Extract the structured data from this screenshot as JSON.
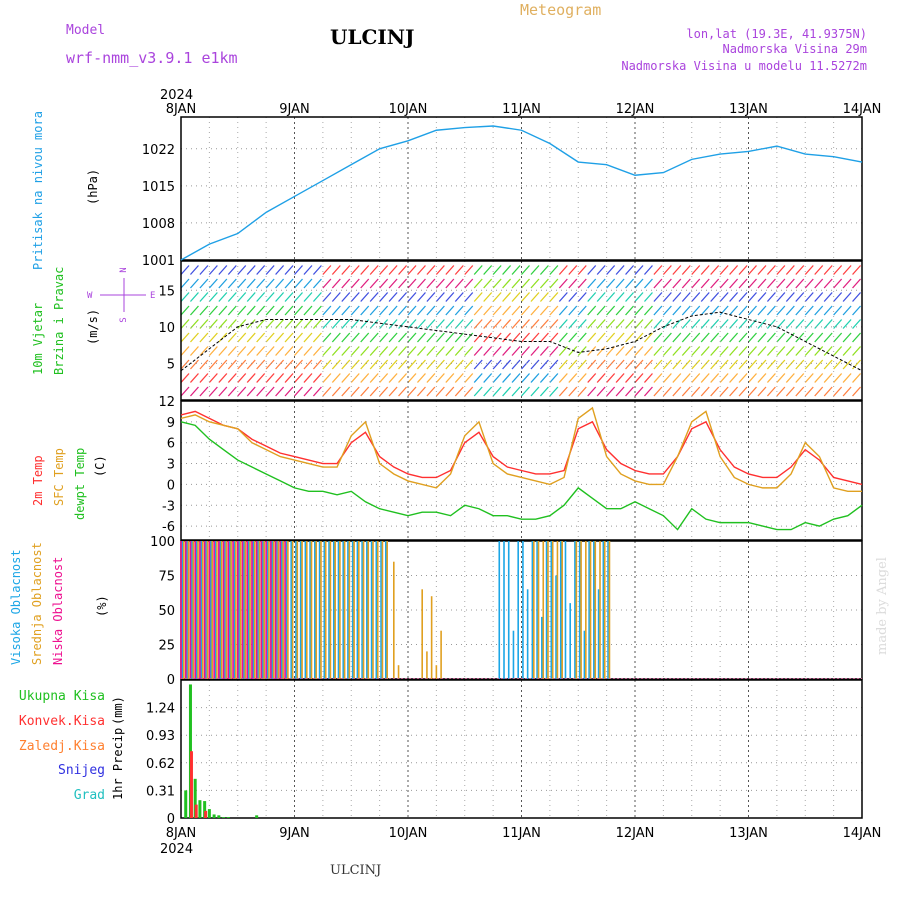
{
  "header": {
    "model_label": "Model",
    "model_name": "wrf-nmm_v3.9.1 e1km",
    "station": "ULCINJ",
    "meteogram": "Meteogram",
    "lonlat": "lon,lat (19.3E, 41.9375N)",
    "elev": "Nadmorska Visina 29m",
    "elev_model": "Nadmorska Visina u modelu 11.5272m",
    "footer_station": "ULCINJ",
    "credit": "made by Angel"
  },
  "time_axis": {
    "year": "2024",
    "days": [
      "8JAN",
      "9JAN",
      "10JAN",
      "11JAN",
      "12JAN",
      "13JAN",
      "14JAN"
    ],
    "hours_span": 144
  },
  "colors": {
    "pressure": "#1fa0e6",
    "temp2m": "#ff3030",
    "sfc_temp": "#e0a020",
    "dewpoint": "#20c020",
    "cloud_high": "#1ba6e6",
    "cloud_mid": "#e0a020",
    "cloud_low": "#ee1090",
    "precip_total": "#20c020",
    "precip_conv": "#ff3030",
    "precip_frozen": "#ff8030",
    "precip_snow": "#3030e0",
    "precip_grad": "#20c0c0",
    "label_purple": "#aa44dd"
  },
  "chart_data": [
    {
      "type": "line",
      "ylabel_name": "Pritisak na nivou mora",
      "ylabel_unit": "(hPa)",
      "yticks": [
        "1001",
        "1008",
        "1015",
        "1022"
      ],
      "ylim": [
        1001,
        1028
      ],
      "series": [
        {
          "x": [
            0,
            6,
            12,
            18,
            24,
            30,
            36,
            42,
            48,
            54,
            60,
            66,
            72,
            78,
            84,
            90,
            96,
            102,
            108,
            114,
            120,
            126,
            132,
            138,
            144
          ],
          "values": [
            1001,
            1004,
            1006,
            1010,
            1013,
            1016,
            1019,
            1022,
            1023.5,
            1025.5,
            1026,
            1026.3,
            1025.5,
            1023,
            1019.5,
            1019,
            1017,
            1017.5,
            1020,
            1021,
            1021.5,
            1022.5,
            1021,
            1020.5,
            1019.5
          ]
        }
      ]
    },
    {
      "type": "line",
      "ylabel_name1": "10m Vjetar",
      "ylabel_name2": "Brzina i Pravac",
      "ylabel_unit": "(m/s)",
      "compass_n": "N",
      "compass_w": "W",
      "compass_e": "E",
      "compass_s": "S",
      "yticks": [
        "5",
        "10",
        "15"
      ],
      "ylim": [
        0,
        19
      ],
      "series": [
        {
          "x": [
            0,
            6,
            12,
            18,
            24,
            30,
            36,
            42,
            48,
            54,
            60,
            66,
            72,
            78,
            84,
            90,
            96,
            102,
            108,
            114,
            120,
            126,
            132,
            138,
            144
          ],
          "values": [
            4,
            7,
            10,
            11,
            11,
            11,
            11,
            10.5,
            10,
            9.5,
            9,
            8.5,
            8,
            8,
            6.5,
            7,
            8,
            10,
            11.5,
            12,
            11,
            10,
            8,
            6,
            4
          ]
        }
      ]
    },
    {
      "type": "line",
      "ylabel_name1": "2m Temp",
      "ylabel_name2": "SFC Temp",
      "ylabel_name3": "dewpt Temp",
      "ylabel_unit": "(C)",
      "yticks": [
        "-6",
        "-3",
        "0",
        "3",
        "6",
        "9",
        "12"
      ],
      "ylim": [
        -8,
        12
      ],
      "series": [
        {
          "name": "2m Temp",
          "x": [
            0,
            3,
            6,
            9,
            12,
            15,
            18,
            21,
            24,
            27,
            30,
            33,
            36,
            39,
            42,
            45,
            48,
            51,
            54,
            57,
            60,
            63,
            66,
            69,
            72,
            75,
            78,
            81,
            84,
            87,
            90,
            93,
            96,
            99,
            102,
            105,
            108,
            111,
            114,
            117,
            120,
            123,
            126,
            129,
            132,
            135,
            138,
            141,
            144
          ],
          "values": [
            10,
            10.5,
            9.5,
            8.5,
            8,
            6.5,
            5.5,
            4.5,
            4,
            3.5,
            3,
            3,
            6,
            7.5,
            4,
            2.5,
            1.5,
            1,
            1,
            2,
            6,
            7.5,
            4,
            2.5,
            2,
            1.5,
            1.5,
            2,
            8,
            9,
            5,
            3,
            2,
            1.5,
            1.5,
            4,
            8,
            9,
            5,
            2.5,
            1.5,
            1,
            1,
            2.5,
            5,
            3.5,
            1,
            0.5,
            0
          ]
        },
        {
          "name": "SFC Temp",
          "x": [
            0,
            3,
            6,
            9,
            12,
            15,
            18,
            21,
            24,
            27,
            30,
            33,
            36,
            39,
            42,
            45,
            48,
            51,
            54,
            57,
            60,
            63,
            66,
            69,
            72,
            75,
            78,
            81,
            84,
            87,
            90,
            93,
            96,
            99,
            102,
            105,
            108,
            111,
            114,
            117,
            120,
            123,
            126,
            129,
            132,
            135,
            138,
            141,
            144
          ],
          "values": [
            9.5,
            10,
            9,
            8.5,
            8,
            6,
            5,
            4,
            3.5,
            3,
            2.5,
            2.5,
            7,
            9,
            3,
            1.5,
            0.5,
            0,
            -0.5,
            1.5,
            7,
            9,
            3,
            1.5,
            1,
            0.5,
            0,
            1,
            9.5,
            11,
            4,
            1.5,
            0.5,
            0,
            0,
            4,
            9,
            10.5,
            4,
            1,
            0,
            -0.5,
            -0.5,
            1.5,
            6,
            4,
            -0.5,
            -1,
            -1
          ]
        },
        {
          "name": "dewpt Temp",
          "x": [
            0,
            3,
            6,
            9,
            12,
            15,
            18,
            21,
            24,
            27,
            30,
            33,
            36,
            39,
            42,
            45,
            48,
            51,
            54,
            57,
            60,
            63,
            66,
            69,
            72,
            75,
            78,
            81,
            84,
            87,
            90,
            93,
            96,
            99,
            102,
            105,
            108,
            111,
            114,
            117,
            120,
            123,
            126,
            129,
            132,
            135,
            138,
            141,
            144
          ],
          "values": [
            9,
            8.5,
            6.5,
            5,
            3.5,
            2.5,
            1.5,
            0.5,
            -0.5,
            -1,
            -1,
            -1.5,
            -1,
            -2.5,
            -3.5,
            -4,
            -4.5,
            -4,
            -4,
            -4.5,
            -3,
            -3.5,
            -4.5,
            -4.5,
            -5,
            -5,
            -4.5,
            -3,
            -0.5,
            -2,
            -3.5,
            -3.5,
            -2.5,
            -3.5,
            -4.5,
            -6.5,
            -3.5,
            -5,
            -5.5,
            -5.5,
            -5.5,
            -6,
            -6.5,
            -6.5,
            -5.5,
            -6,
            -5,
            -4.5,
            -3
          ]
        }
      ]
    },
    {
      "type": "bar",
      "ylabel_name1": "Visoka Oblacnost",
      "ylabel_name2": "Srednja Oblacnost",
      "ylabel_name3": "Niska Oblacnost",
      "ylabel_unit": "(%)",
      "yticks": [
        "0",
        "25",
        "50",
        "75",
        "100"
      ],
      "ylim": [
        0,
        100
      ],
      "series": [
        {
          "name": "high",
          "segments": [
            {
              "from": 0,
              "to": 15,
              "value": 100
            },
            {
              "from": 15,
              "to": 30,
              "value": 100
            },
            {
              "from": 30,
              "to": 43,
              "value": 100
            },
            {
              "from": 67,
              "to": 90,
              "value": 100
            }
          ]
        },
        {
          "name": "mid",
          "segments": [
            {
              "from": 0,
              "to": 43,
              "value": 100
            },
            {
              "from": 74,
              "to": 80,
              "value": 100
            },
            {
              "from": 83,
              "to": 90,
              "value": 100
            }
          ],
          "extra": [
            {
              "x": 45,
              "value": 85
            },
            {
              "x": 46,
              "value": 10
            },
            {
              "x": 51,
              "value": 65
            },
            {
              "x": 52,
              "value": 20
            },
            {
              "x": 53,
              "value": 60
            },
            {
              "x": 54,
              "value": 10
            },
            {
              "x": 55,
              "value": 35
            }
          ]
        },
        {
          "name": "low",
          "segments": [
            {
              "from": 0,
              "to": 22,
              "value": 100
            }
          ],
          "mixed": true
        }
      ]
    },
    {
      "type": "bar",
      "ylabel_precip": "1hr Precip",
      "ylabel_unit": "(mm)",
      "legend": [
        "Ukupna Kisa",
        "Konvek.Kisa",
        "Zaledj.Kisa",
        "Snijeg",
        "Grad"
      ],
      "yticks": [
        "0",
        "0.31",
        "0.62",
        "0.93",
        "1.24"
      ],
      "ylim": [
        0,
        1.55
      ],
      "series": [
        {
          "name": "Ukupna Kisa",
          "x": [
            1,
            2,
            3,
            4,
            5,
            6,
            7,
            8,
            9,
            10,
            16
          ],
          "values": [
            0.31,
            1.5,
            0.44,
            0.2,
            0.19,
            0.1,
            0.04,
            0.03,
            0.01,
            0.01,
            0.03
          ]
        },
        {
          "name": "Konvek.Kisa",
          "x": [
            2,
            3,
            5
          ],
          "values": [
            0.75,
            0.15,
            0.08
          ]
        }
      ]
    }
  ]
}
